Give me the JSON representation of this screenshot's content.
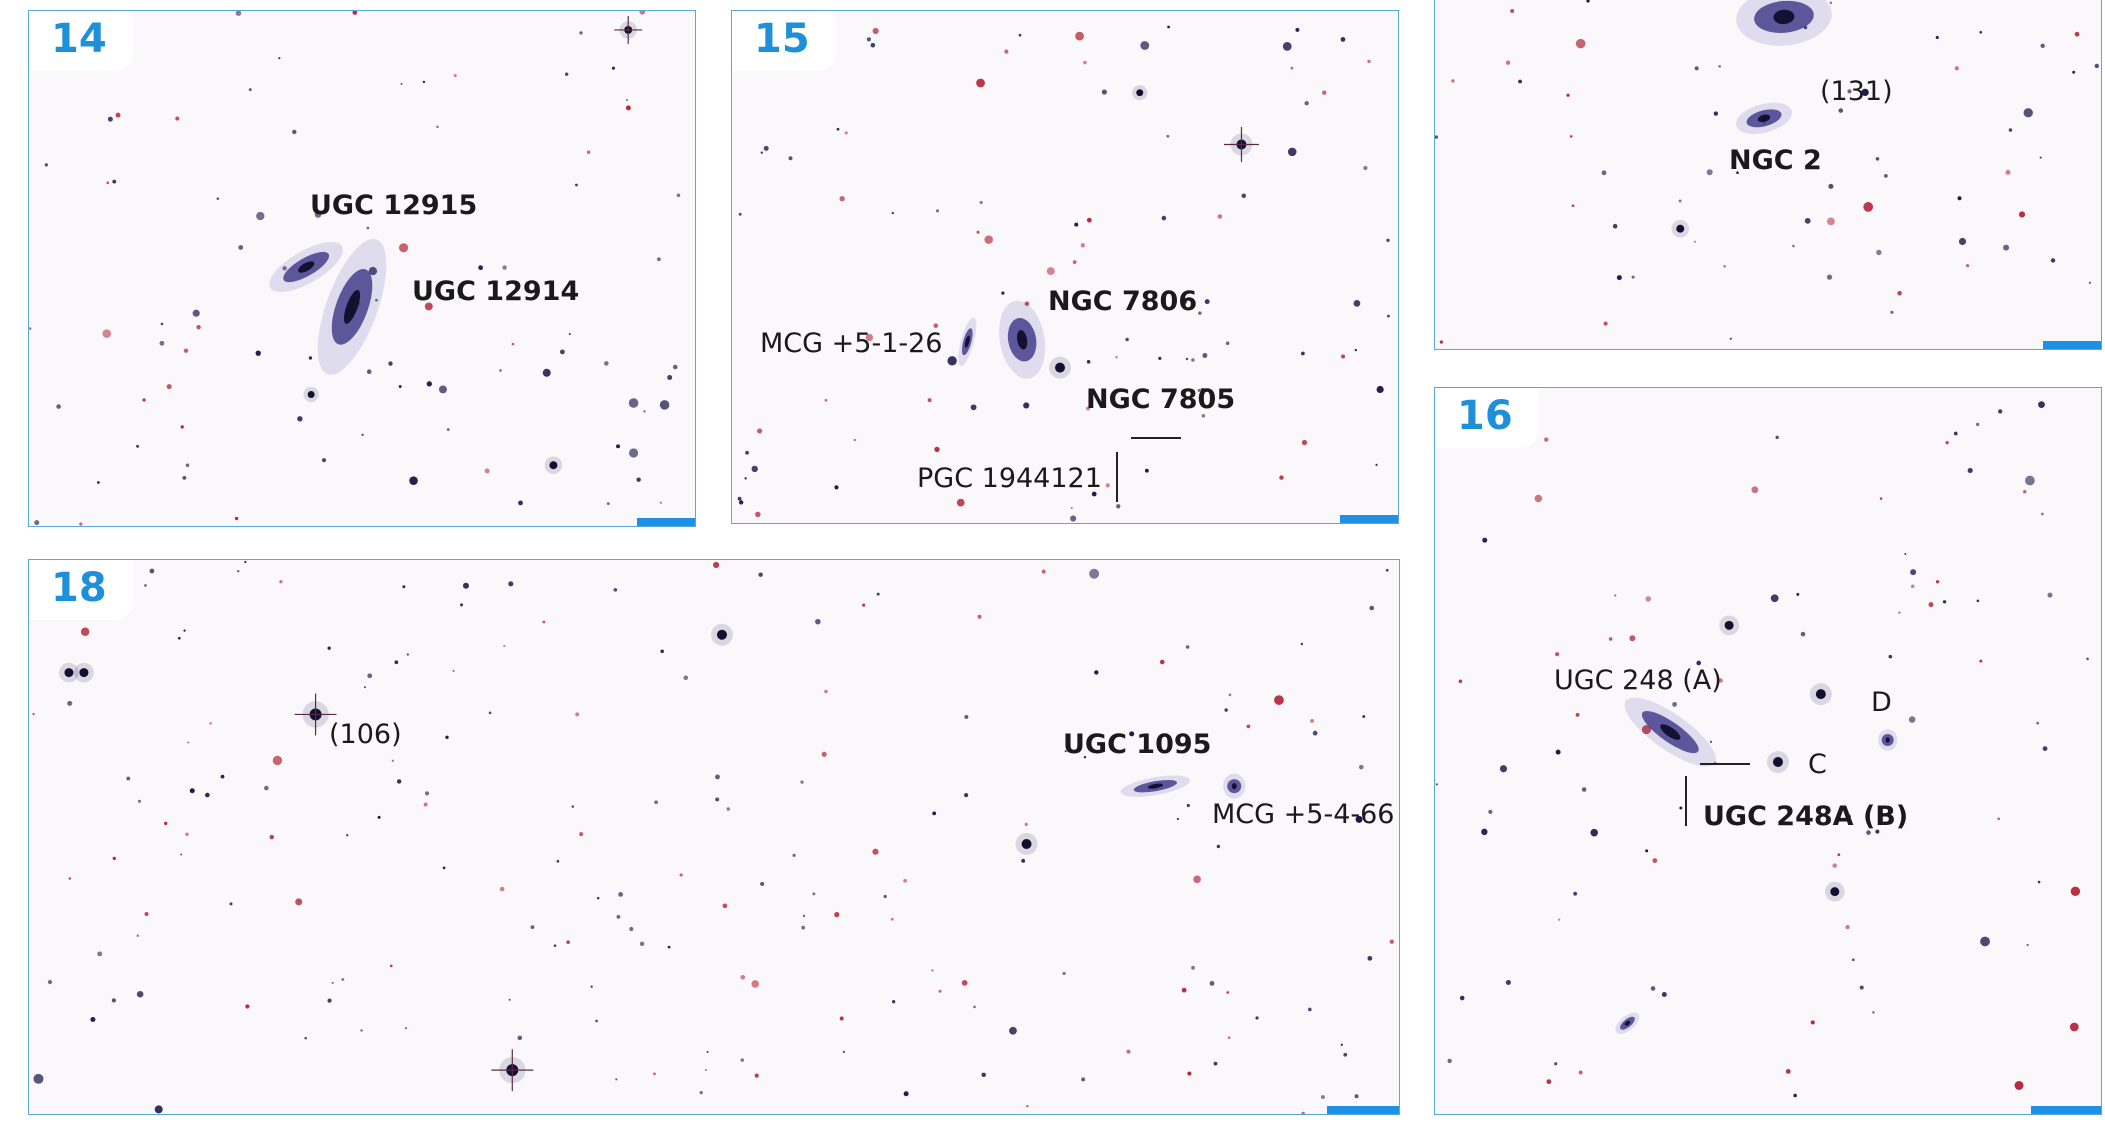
{
  "panels": {
    "p14": {
      "number": "14",
      "labels": {
        "ugc12915": "UGC 12915",
        "ugc12914": "UGC 12914"
      }
    },
    "p15": {
      "number": "15",
      "labels": {
        "ngc7806": "NGC 7806",
        "mcg5_1_26": "MCG +5-1-26",
        "ngc7805": "NGC 7805",
        "pgc1944121": "PGC 1944121"
      }
    },
    "pngc2": {
      "number": "",
      "labels": {
        "n131": "(131)",
        "ngc2": "NGC 2"
      }
    },
    "p16": {
      "number": "16",
      "labels": {
        "ugc248a_label": "UGC 248 (A)",
        "d": "D",
        "c": "C",
        "ugc248a_b": "UGC 248A (B)"
      }
    },
    "p18": {
      "number": "18",
      "labels": {
        "n106": "(106)",
        "ugc1095": "UGC 1095",
        "mcg5_4_66": "MCG +5-4-66"
      }
    }
  },
  "colors": {
    "frame": "#5aa7d9",
    "panel_number": "#1e8fd9",
    "scale_bar": "#1e90e6",
    "sky": "#fbf8fb",
    "star_blue": "#1c1a4a",
    "star_red": "#b5283a"
  }
}
